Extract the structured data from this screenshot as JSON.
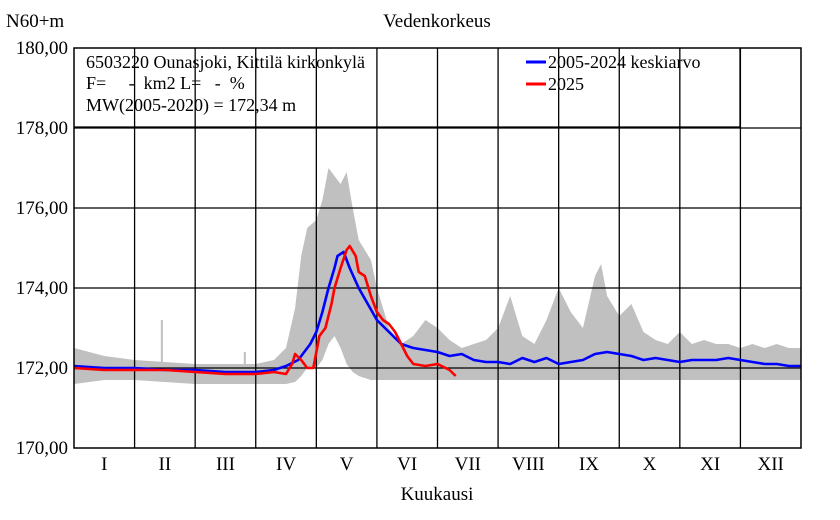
{
  "chart_data": {
    "type": "line",
    "title": "Vedenkorkeus",
    "ylabel": "N60+m",
    "xlabel": "Kuukausi",
    "ylim": [
      170,
      180
    ],
    "xlim": [
      0,
      12
    ],
    "yticks": [
      170,
      172,
      174,
      176,
      178,
      180
    ],
    "ytick_labels": [
      "170,00",
      "172,00",
      "174,00",
      "176,00",
      "178,00",
      "180,00"
    ],
    "categories": [
      "I",
      "II",
      "III",
      "IV",
      "V",
      "VI",
      "VII",
      "VIII",
      "IX",
      "X",
      "XI",
      "XII"
    ],
    "grid": true,
    "info_lines": [
      "6503220 Ounasjoki, Kittilä kirkonkylä",
      "F=     -  km2 L=   -  %",
      "MW(2005-2020) = 172,34 m"
    ],
    "legend": {
      "placement": "top-right"
    },
    "colors": {
      "mean": "#0000ff",
      "current": "#ff0000",
      "band": "#c0c0c0"
    },
    "band": {
      "x": [
        0,
        0.5,
        1,
        1.5,
        2,
        2.5,
        3,
        3.3,
        3.5,
        3.65,
        3.75,
        3.85,
        4.0,
        4.1,
        4.2,
        4.3,
        4.4,
        4.5,
        4.6,
        4.7,
        4.9,
        5.0,
        5.2,
        5.4,
        5.6,
        5.8,
        6.0,
        6.2,
        6.4,
        6.6,
        6.8,
        7.0,
        7.2,
        7.4,
        7.6,
        7.8,
        8.0,
        8.2,
        8.4,
        8.6,
        8.7,
        8.8,
        9.0,
        9.2,
        9.4,
        9.6,
        9.8,
        10.0,
        10.2,
        10.4,
        10.6,
        10.8,
        11.0,
        11.2,
        11.4,
        11.6,
        11.8,
        12
      ],
      "upper": [
        172.5,
        172.3,
        172.2,
        172.15,
        172.1,
        172.1,
        172.1,
        172.2,
        172.5,
        173.5,
        174.8,
        175.5,
        175.7,
        176.2,
        177.0,
        176.8,
        176.6,
        176.9,
        176.0,
        175.2,
        174.7,
        174.0,
        173.0,
        172.6,
        172.8,
        173.2,
        173.0,
        172.7,
        172.5,
        172.6,
        172.7,
        173.0,
        173.8,
        172.8,
        172.6,
        173.2,
        174.0,
        173.4,
        173.0,
        174.3,
        174.6,
        173.8,
        173.3,
        173.6,
        172.9,
        172.7,
        172.6,
        172.9,
        172.6,
        172.7,
        172.6,
        172.6,
        172.5,
        172.6,
        172.5,
        172.6,
        172.5,
        172.5
      ],
      "lower": [
        171.6,
        171.7,
        171.7,
        171.65,
        171.6,
        171.6,
        171.6,
        171.6,
        171.6,
        171.65,
        171.8,
        172.0,
        172.0,
        172.2,
        172.6,
        172.8,
        172.5,
        172.1,
        171.9,
        171.8,
        171.7,
        171.7,
        171.7,
        171.7,
        171.7,
        171.7,
        171.7,
        171.7,
        171.7,
        171.7,
        171.7,
        171.7,
        171.7,
        171.7,
        171.7,
        171.7,
        171.7,
        171.7,
        171.7,
        171.7,
        171.7,
        171.7,
        171.7,
        171.7,
        171.7,
        171.7,
        171.7,
        171.7,
        171.7,
        171.7,
        171.7,
        171.7,
        171.7,
        171.7,
        171.7,
        171.7,
        171.7,
        171.7
      ]
    },
    "spikes": [
      {
        "x": 1.45,
        "y": 173.2
      },
      {
        "x": 2.82,
        "y": 172.4
      }
    ],
    "series": [
      {
        "name": "2005-2024 keskiarvo",
        "color": "#0000ff",
        "x": [
          0,
          0.5,
          1,
          1.5,
          2,
          2.5,
          3,
          3.3,
          3.5,
          3.7,
          3.9,
          4.0,
          4.1,
          4.2,
          4.3,
          4.35,
          4.45,
          4.55,
          4.7,
          4.85,
          5.0,
          5.2,
          5.4,
          5.6,
          5.8,
          6.0,
          6.2,
          6.4,
          6.6,
          6.8,
          7.0,
          7.2,
          7.4,
          7.6,
          7.8,
          8.0,
          8.2,
          8.4,
          8.6,
          8.8,
          9.0,
          9.2,
          9.4,
          9.6,
          9.8,
          10.0,
          10.2,
          10.4,
          10.6,
          10.8,
          11.0,
          11.2,
          11.4,
          11.6,
          11.8,
          12
        ],
        "y": [
          172.05,
          172.0,
          172.0,
          171.95,
          171.95,
          171.9,
          171.9,
          171.95,
          172.05,
          172.2,
          172.6,
          172.9,
          173.4,
          174.0,
          174.5,
          174.8,
          174.9,
          174.5,
          174.0,
          173.6,
          173.2,
          172.9,
          172.6,
          172.5,
          172.45,
          172.4,
          172.3,
          172.35,
          172.2,
          172.15,
          172.15,
          172.1,
          172.25,
          172.15,
          172.25,
          172.1,
          172.15,
          172.2,
          172.35,
          172.4,
          172.35,
          172.3,
          172.2,
          172.25,
          172.2,
          172.15,
          172.2,
          172.2,
          172.2,
          172.25,
          172.2,
          172.15,
          172.1,
          172.1,
          172.05,
          172.05
        ]
      },
      {
        "name": "2025",
        "color": "#ff0000",
        "x": [
          0,
          0.5,
          1,
          1.5,
          2,
          2.5,
          3,
          3.3,
          3.5,
          3.6,
          3.65,
          3.75,
          3.85,
          3.95,
          4.05,
          4.15,
          4.25,
          4.3,
          4.4,
          4.5,
          4.55,
          4.65,
          4.7,
          4.8,
          4.9,
          5.0,
          5.1,
          5.2,
          5.3,
          5.4,
          5.5,
          5.6,
          5.8,
          6.0,
          6.2,
          6.3
        ],
        "y": [
          172.0,
          171.95,
          171.95,
          171.95,
          171.9,
          171.85,
          171.85,
          171.9,
          171.85,
          172.1,
          172.35,
          172.2,
          172.0,
          172.0,
          172.8,
          173.0,
          173.6,
          174.0,
          174.5,
          174.95,
          175.05,
          174.8,
          174.4,
          174.3,
          173.8,
          173.4,
          173.2,
          173.1,
          172.9,
          172.6,
          172.3,
          172.1,
          172.05,
          172.1,
          171.95,
          171.8
        ]
      }
    ]
  }
}
